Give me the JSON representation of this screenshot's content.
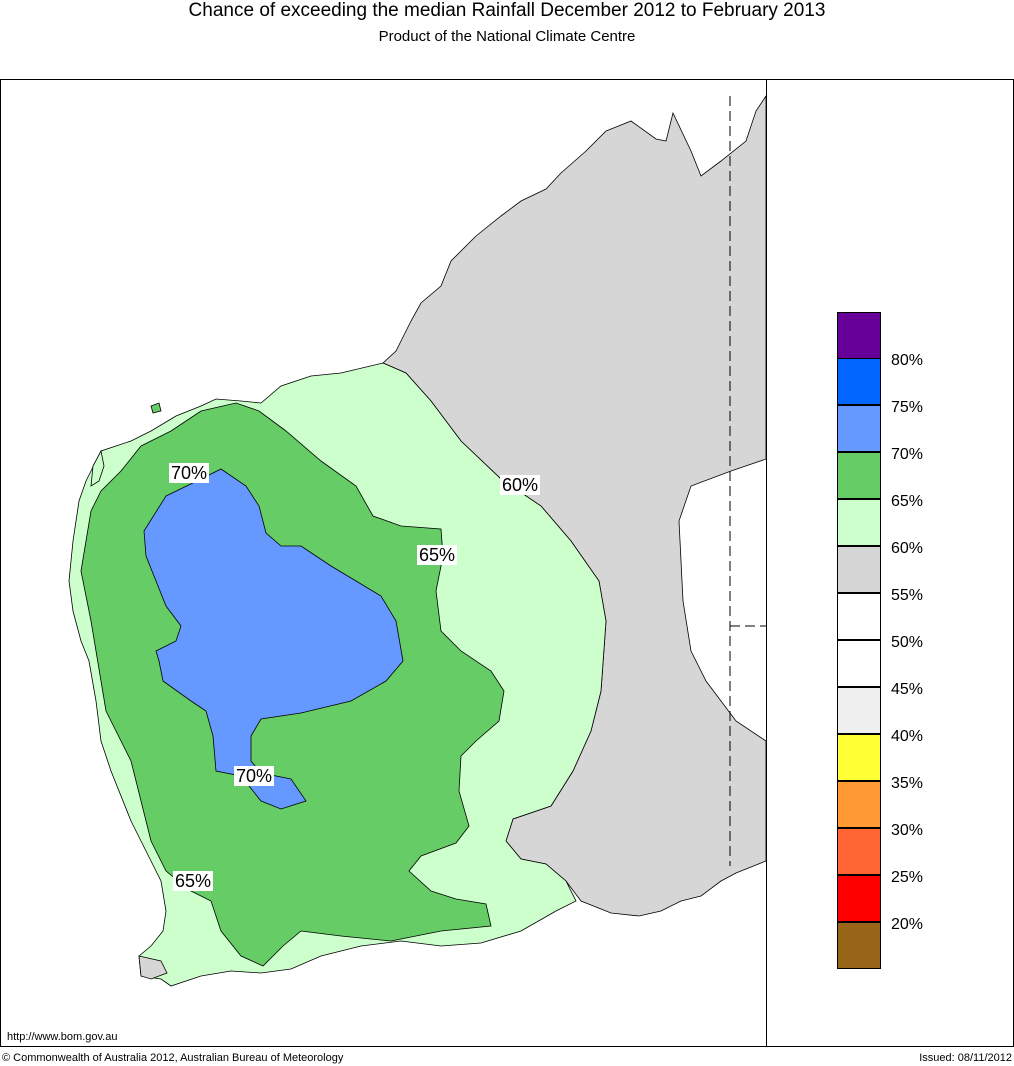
{
  "header": {
    "title": "Chance of exceeding the median Rainfall December 2012 to February 2013",
    "subtitle": "Product of the National Climate Centre"
  },
  "map": {
    "region": "Western Australia",
    "contour_labels": [
      "70%",
      "65%",
      "60%",
      "70%",
      "65%"
    ],
    "colors": {
      "ocean": "#ffffff",
      "p55_60": "#d6d6d6",
      "p60_65": "#ccffcc",
      "p65_70": "#66cc66",
      "p70_75": "#6699ff"
    }
  },
  "legend": {
    "colors": [
      "#660099",
      "#0066ff",
      "#6699ff",
      "#66cc66",
      "#ccffcc",
      "#d6d6d6",
      "#ffffff",
      "#ffffff",
      "#f0f0f0",
      "#ffff33",
      "#ff9933",
      "#ff6633",
      "#ff0000",
      "#996619"
    ],
    "labels": [
      "80%",
      "75%",
      "70%",
      "65%",
      "60%",
      "55%",
      "50%",
      "45%",
      "40%",
      "35%",
      "30%",
      "25%",
      "20%"
    ]
  },
  "footer": {
    "url": "http://www.bom.gov.au",
    "copyright": "© Commonwealth of Australia 2012, Australian Bureau of Meteorology",
    "issued": "Issued: 08/11/2012"
  }
}
